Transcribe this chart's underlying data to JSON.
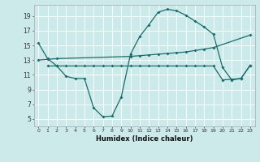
{
  "xlabel": "Humidex (Indice chaleur)",
  "bg_color": "#cdeaea",
  "line_color": "#1a6b6b",
  "grid_color": "#ffffff",
  "ylim": [
    4,
    20.5
  ],
  "xlim": [
    -0.5,
    23.5
  ],
  "yticks": [
    5,
    7,
    9,
    11,
    13,
    15,
    17,
    19
  ],
  "xticks": [
    0,
    1,
    2,
    3,
    4,
    5,
    6,
    7,
    8,
    9,
    10,
    11,
    12,
    13,
    14,
    15,
    16,
    17,
    18,
    19,
    20,
    21,
    22,
    23
  ],
  "line1_x": [
    0,
    1,
    2,
    3,
    4,
    5,
    6,
    7,
    8,
    9,
    10,
    11,
    12,
    13,
    14,
    15,
    16,
    17,
    18,
    19,
    20,
    21,
    22,
    23
  ],
  "line1_y": [
    15.3,
    13.2,
    12.2,
    10.8,
    10.5,
    10.5,
    6.5,
    5.3,
    5.4,
    8.0,
    13.8,
    16.2,
    17.8,
    19.5,
    19.9,
    19.7,
    19.1,
    18.3,
    17.5,
    16.5,
    12.0,
    10.3,
    10.5,
    12.3
  ],
  "line2_x": [
    0,
    1,
    2,
    10,
    11,
    12,
    13,
    14,
    15,
    16,
    17,
    18,
    19,
    23
  ],
  "line2_y": [
    13.0,
    13.1,
    13.2,
    13.5,
    13.6,
    13.7,
    13.8,
    13.9,
    14.0,
    14.1,
    14.3,
    14.5,
    14.7,
    16.4
  ],
  "line3_x": [
    1,
    2,
    3,
    4,
    5,
    6,
    7,
    8,
    9,
    10,
    11,
    12,
    13,
    14,
    15,
    16,
    17,
    18,
    19,
    20,
    21,
    22,
    23
  ],
  "line3_y": [
    12.2,
    12.2,
    12.2,
    12.2,
    12.2,
    12.2,
    12.2,
    12.2,
    12.2,
    12.2,
    12.2,
    12.2,
    12.2,
    12.2,
    12.2,
    12.2,
    12.2,
    12.2,
    12.2,
    10.3,
    10.4,
    10.5,
    12.3
  ]
}
